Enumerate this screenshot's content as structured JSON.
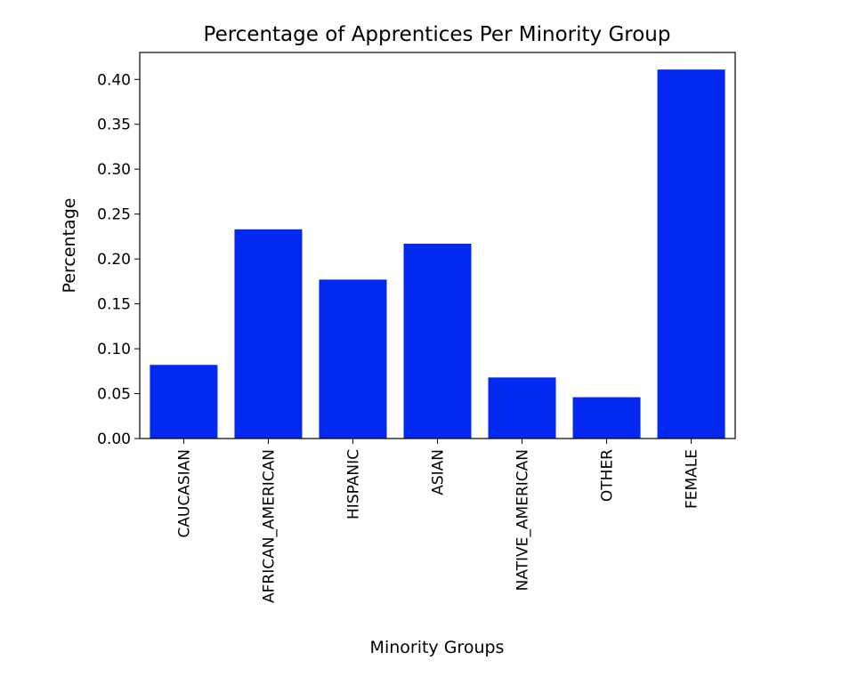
{
  "chart_data": {
    "type": "bar",
    "title": "Percentage of Apprentices Per Minority Group",
    "xlabel": "Minority Groups",
    "ylabel": "Percentage",
    "categories": [
      "CAUCASIAN",
      "AFRICAN_AMERICAN",
      "HISPANIC",
      "ASIAN",
      "NATIVE_AMERICAN",
      "OTHER",
      "FEMALE"
    ],
    "values": [
      0.082,
      0.233,
      0.177,
      0.217,
      0.068,
      0.046,
      0.411
    ],
    "ylim": [
      0,
      0.43
    ],
    "yticks": [
      "0.00",
      "0.05",
      "0.10",
      "0.15",
      "0.20",
      "0.25",
      "0.30",
      "0.35",
      "0.40"
    ],
    "bar_color": "#0328f0",
    "x_tick_rotation": "vertical",
    "grid": false,
    "legend": "none"
  }
}
